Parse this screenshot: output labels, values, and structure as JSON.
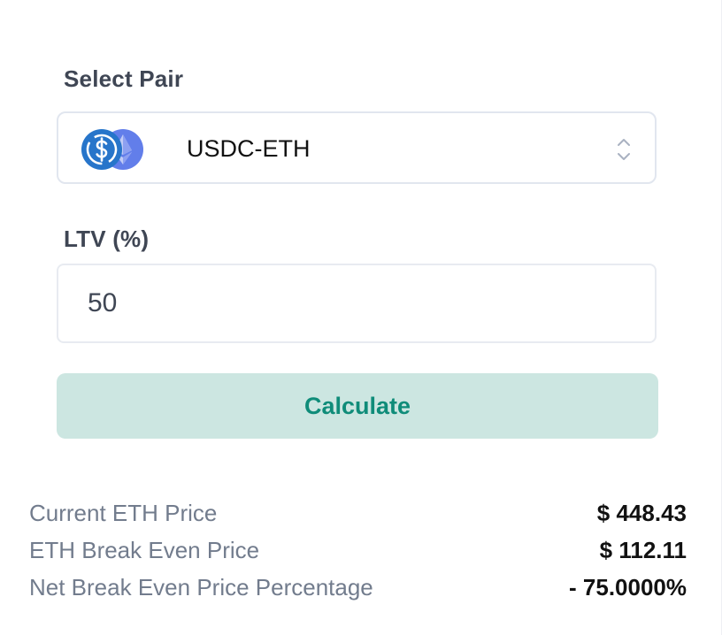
{
  "form": {
    "pair_label": "Select Pair",
    "pair_value": "USDC-ETH",
    "ltv_label": "LTV (%)",
    "ltv_value": "50",
    "calculate_label": "Calculate"
  },
  "icons": {
    "usdc": "usdc-coin-icon",
    "eth": "eth-coin-icon",
    "select": "chevron-up-down-icon"
  },
  "colors": {
    "usdc": "#2775ca",
    "eth": "#627eea",
    "button_bg": "#cce6e1",
    "button_text": "#0f8c79"
  },
  "results": [
    {
      "label": "Current ETH Price",
      "value": "$ 448.43"
    },
    {
      "label": "ETH Break Even Price",
      "value": "$ 112.11"
    },
    {
      "label": "Net Break Even Price Percentage",
      "value": "- 75.0000%"
    }
  ]
}
